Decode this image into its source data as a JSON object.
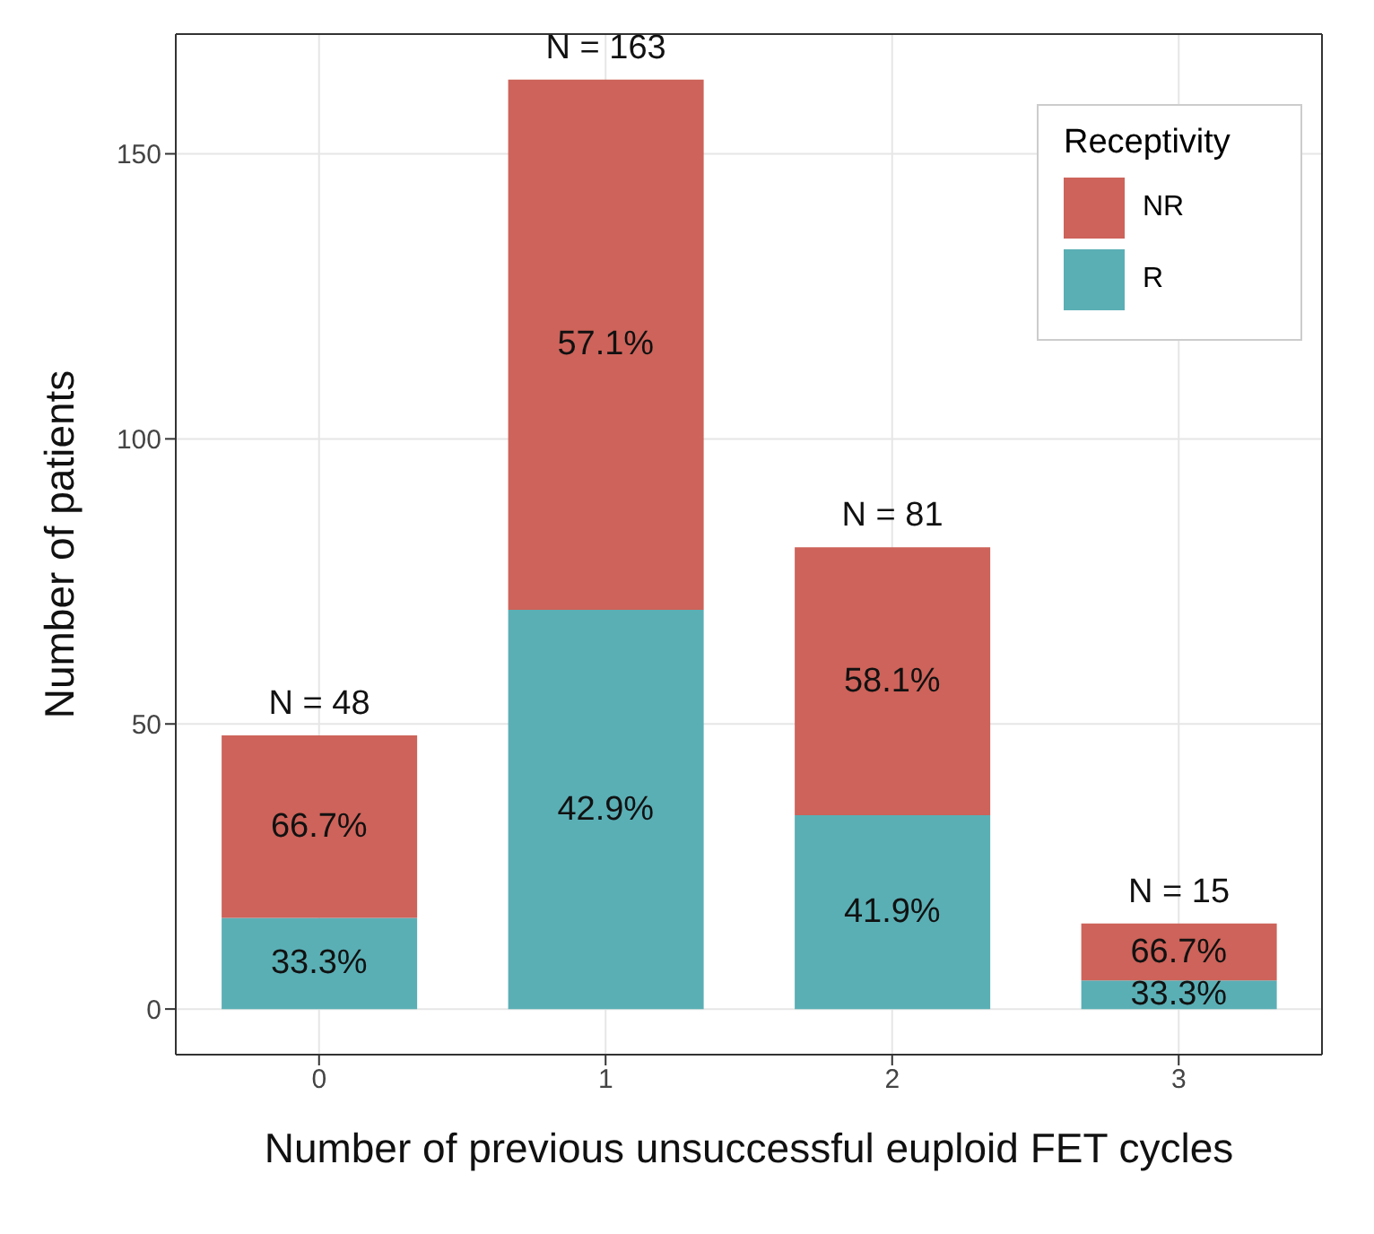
{
  "chart_data": {
    "type": "bar",
    "xlabel": "Number of previous unsuccessful euploid FET cycles",
    "ylabel": "Number of patients",
    "legend_title": "Receptivity",
    "categories": [
      "0",
      "1",
      "2",
      "3"
    ],
    "stacked": true,
    "series": [
      {
        "name": "R",
        "color": "#5aafb5",
        "values": [
          16,
          70,
          34,
          5
        ]
      },
      {
        "name": "NR",
        "color": "#cd635a",
        "values": [
          32,
          93,
          47,
          10
        ]
      }
    ],
    "annotations": [
      "33.3%",
      "66.7%",
      "42.9%",
      "57.1%",
      "41.9%",
      "58.1%",
      "33.3%",
      "66.7%"
    ],
    "totals": [
      "N = 48",
      "N = 163",
      "N = 81",
      "N = 15"
    ],
    "ylim": [
      -8,
      171
    ],
    "yticks": [
      0,
      50,
      100,
      150
    ],
    "grid": true,
    "legend": "top right"
  }
}
